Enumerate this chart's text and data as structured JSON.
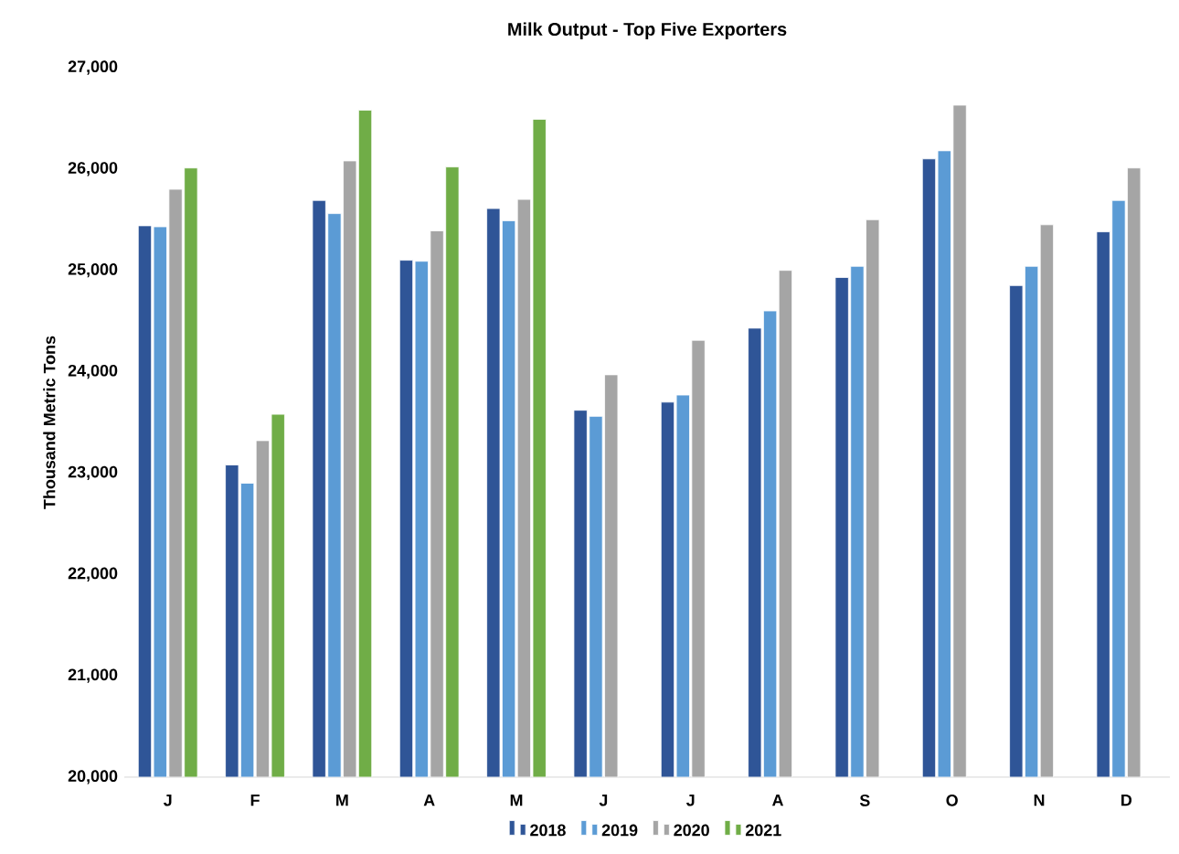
{
  "chart_data": {
    "type": "bar",
    "title": "Milk Output - Top Five Exporters",
    "ylabel": "Thousand Metric Tons",
    "categories": [
      "J",
      "F",
      "M",
      "A",
      "M",
      "J",
      "J",
      "A",
      "S",
      "O",
      "N",
      "D"
    ],
    "series": [
      {
        "name": "2018",
        "color": "#2f5597",
        "values": [
          25440,
          23080,
          25690,
          25100,
          25610,
          23620,
          23700,
          24430,
          24930,
          26100,
          24850,
          25380
        ]
      },
      {
        "name": "2019",
        "color": "#5b9bd5",
        "values": [
          25430,
          22900,
          25560,
          25090,
          25490,
          23560,
          23770,
          24600,
          25040,
          26180,
          25040,
          25690
        ]
      },
      {
        "name": "2020",
        "color": "#a5a5a5",
        "values": [
          25800,
          23320,
          26080,
          25390,
          25700,
          23970,
          24310,
          25000,
          25500,
          26630,
          25450,
          26010
        ]
      },
      {
        "name": "2021",
        "color": "#70ad47",
        "values": [
          26010,
          23580,
          26580,
          26020,
          26490,
          null,
          null,
          null,
          null,
          null,
          null,
          null
        ]
      }
    ],
    "ylim": [
      20000,
      27000
    ],
    "yticks": [
      {
        "value": 20000,
        "label": "20,000"
      },
      {
        "value": 21000,
        "label": "21,000"
      },
      {
        "value": 22000,
        "label": "22,000"
      },
      {
        "value": 23000,
        "label": "23,000"
      },
      {
        "value": 24000,
        "label": "24,000"
      },
      {
        "value": 25000,
        "label": "25,000"
      },
      {
        "value": 26000,
        "label": "26,000"
      },
      {
        "value": 27000,
        "label": "27,000"
      }
    ],
    "grid": false,
    "legend": "bottom"
  }
}
